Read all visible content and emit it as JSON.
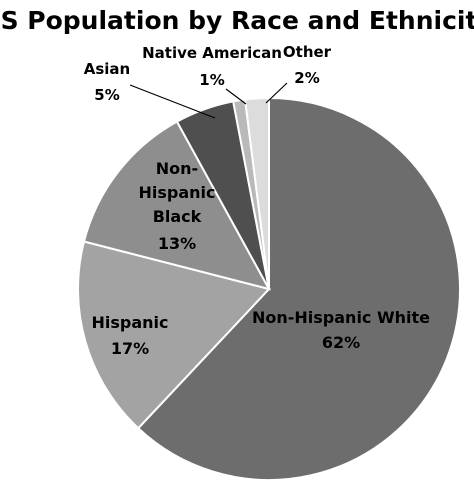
{
  "chart_data": {
    "type": "pie",
    "title": "US Population by Race and Ethnicity",
    "slices": [
      {
        "name": "Non-Hispanic White",
        "value": 62,
        "label": "62%",
        "color": "#6d6d6d"
      },
      {
        "name": "Hispanic",
        "value": 17,
        "label": "17%",
        "color": "#a3a3a3"
      },
      {
        "name": "Non-Hispanic Black",
        "value": 13,
        "label": "13%",
        "color": "#8e8e8e"
      },
      {
        "name": "Asian",
        "value": 5,
        "label": "5%",
        "color": "#4f4f4f"
      },
      {
        "name": "Native American",
        "value": 1,
        "label": "1%",
        "color": "#b9b9b9"
      },
      {
        "name": "Other",
        "value": 2,
        "label": "2%",
        "color": "#dcdcdc"
      }
    ],
    "start_angle_deg": 0,
    "direction": "clockwise",
    "legend": "none",
    "data_labels": "category name and percentage"
  }
}
